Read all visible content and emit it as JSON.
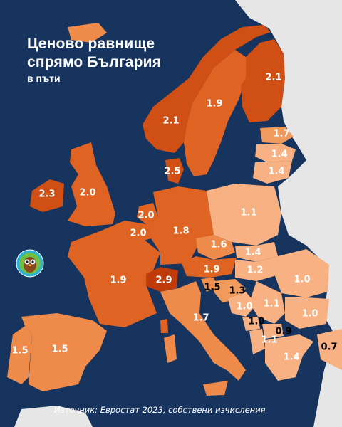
{
  "title": {
    "line1": "Ценово равнище",
    "line2": "спрямо България",
    "line3": "в пъти"
  },
  "source": "Източник: Евростат 2023, собствени изчисления",
  "logo_icon": "owl-logo-icon",
  "colors": {
    "background": "#17345e",
    "non_eu": "#e6e6e6",
    "light": "#f7b183",
    "mid": "#ee8a4a",
    "dark": "#df6423",
    "darker": "#cf4f14",
    "darkest": "#bf3b0a"
  },
  "values": {
    "iceland": "",
    "ireland": "2.3",
    "uk": "2.0",
    "norway": "2.1",
    "sweden": "1.9",
    "finland": "2.1",
    "denmark": "2.5",
    "estonia": "1.7",
    "latvia": "1.4",
    "lithuania": "1.4",
    "netherlands": "2.0",
    "belgium": "2.0",
    "germany": "1.8",
    "poland": "1.1",
    "czechia": "1.6",
    "slovakia": "1.4",
    "austria": "1.9",
    "hungary": "1.2",
    "switzerland": "2.9",
    "france": "1.9",
    "italy": "1.7",
    "slovenia": "1.5",
    "croatia": "1.3",
    "bosnia": "1.0",
    "serbia": "1.1",
    "romania": "1.0",
    "bulgaria": "1.0",
    "montenegro": "1.0",
    "north_macedonia": "0.9",
    "albania": "1.1",
    "greece": "1.4",
    "turkey": "0.7",
    "spain": "1.5",
    "portugal": "1.5"
  }
}
